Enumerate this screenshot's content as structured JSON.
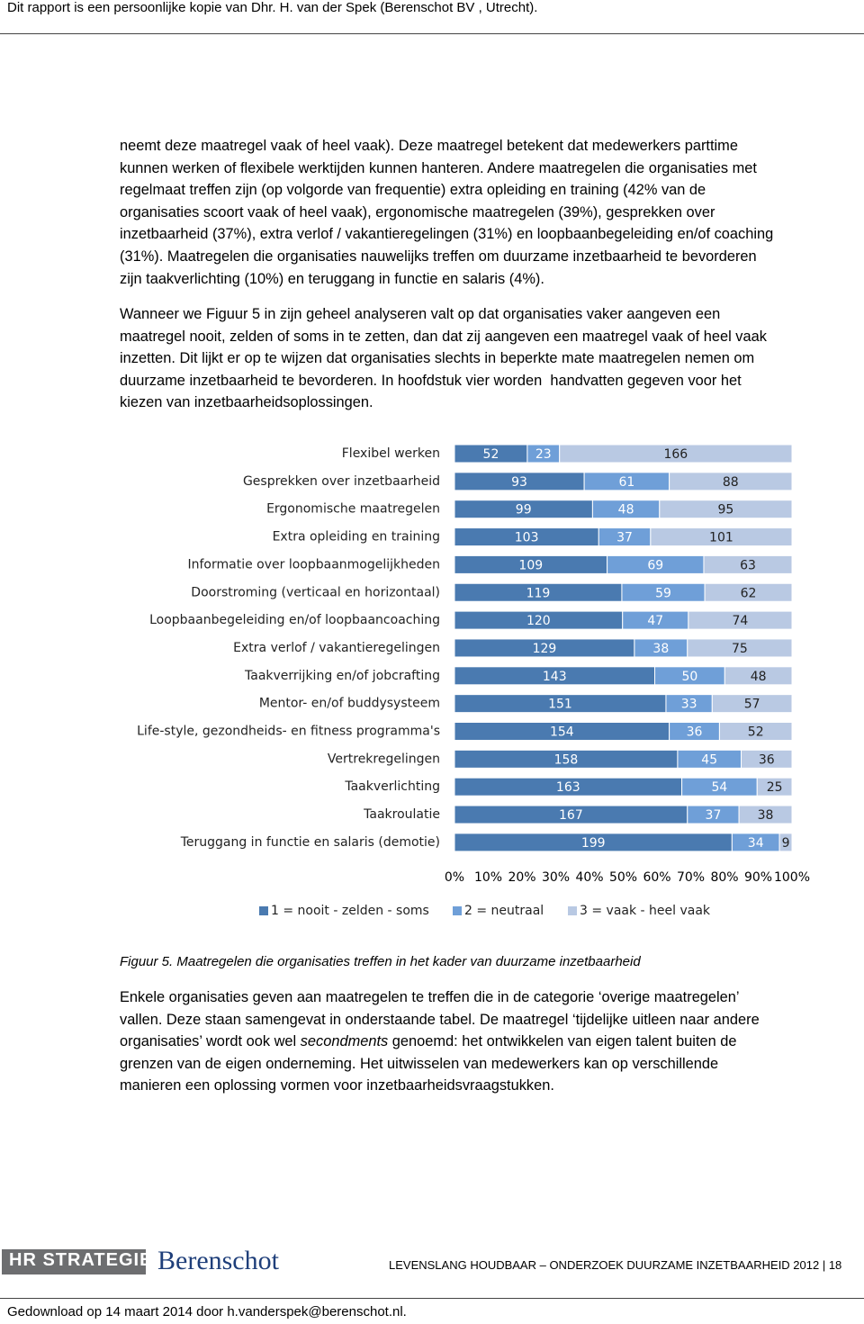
{
  "header": {
    "text": "Dit rapport is een persoonlijke kopie van Dhr. H. van der Spek (Berenschot BV , Utrecht)."
  },
  "paragraphs": [
    {
      "lines": [
        "neemt deze maatregel vaak of heel vaak). Deze maatregel betekent dat medewerkers parttime",
        "kunnen werken of flexibele werktijden kunnen hanteren. Andere maatregelen die organisaties met",
        "regelmaat treffen zijn (op volgorde van frequentie) extra opleiding en training (42% van de",
        "organisaties scoort vaak of heel vaak), ergonomische maatregelen (39%), gesprekken over",
        "inzetbaarheid (37%), extra verlof / vakantieregelingen (31%) en loopbaanbegeleiding en/of coaching",
        "(31%). Maatregelen die organisaties nauwelijks treffen om duurzame inzetbaarheid te bevorderen",
        "zijn taakverlichting (10%) en teruggang in functie en salaris (4%)."
      ]
    },
    {
      "lines": [
        "Wanneer we Figuur 5 in zijn geheel analyseren valt op dat organisaties vaker aangeven een",
        "maatregel nooit, zelden of soms in te zetten, dan dat zij aangeven een maatregel vaak of heel vaak",
        "inzetten. Dit lijkt er op te wijzen dat organisaties slechts in beperkte mate maatregelen nemen om",
        "duurzame inzetbaarheid te bevorderen. In hoofdstuk vier worden  handvatten gegeven voor het",
        "kiezen van inzetbaarheidsoplossingen."
      ]
    },
    {
      "lines": [
        "Enkele organisaties geven aan maatregelen te treffen die in de categorie ‘overige maatregelen’",
        "vallen. Deze staan samengevat in onderstaande tabel. De maatregel ‘tijdelijke uitleen naar andere",
        [
          "organisaties’ wordt ook wel ",
          "secondments",
          " genoemd: het ontwikkelen van eigen talent buiten de"
        ],
        "grenzen van de eigen onderneming. Het uitwisselen van medewerkers kan op verschillende",
        "manieren een oplossing vormen voor inzetbaarheidsvraagstukken."
      ]
    }
  ],
  "caption": "Figuur 5. Maatregelen die organisaties treffen in het kader van duurzame inzetbaarheid",
  "chart_data": {
    "type": "bar",
    "orientation": "horizontal",
    "stacked": "percent",
    "categories": [
      "Flexibel werken",
      "Gesprekken over inzetbaarheid",
      "Ergonomische maatregelen",
      "Extra opleiding en training",
      "Informatie over loopbaanmogelijkheden",
      "Doorstroming (verticaal en horizontaal)",
      "Loopbaanbegeleiding en/of loopbaancoaching",
      "Extra verlof / vakantieregelingen",
      "Taakverrijking en/of jobcrafting",
      "Mentor- en/of buddysysteem",
      "Life-style, gezondheids- en fitness programma's",
      "Vertrekregelingen",
      "Taakverlichting",
      "Taakroulatie",
      "Teruggang in functie en salaris (demotie)"
    ],
    "series": [
      {
        "name": "1 = nooit - zelden - soms",
        "color": "#4a7ab0",
        "values": [
          52,
          93,
          99,
          103,
          109,
          119,
          120,
          129,
          143,
          151,
          154,
          158,
          163,
          167,
          199
        ]
      },
      {
        "name": "2 = neutraal",
        "color": "#6f9fd8",
        "values": [
          23,
          61,
          48,
          37,
          69,
          59,
          47,
          38,
          50,
          33,
          36,
          45,
          54,
          37,
          34
        ]
      },
      {
        "name": "3 = vaak -  heel vaak",
        "color": "#b9c9e3",
        "values": [
          166,
          88,
          95,
          101,
          63,
          62,
          74,
          75,
          48,
          57,
          52,
          36,
          25,
          38,
          9
        ]
      }
    ],
    "xlim": [
      0,
      100
    ],
    "xticks": [
      {
        "value": 0,
        "label": "0%"
      },
      {
        "value": 10,
        "label": "10%"
      },
      {
        "value": 20,
        "label": "20%"
      },
      {
        "value": 30,
        "label": "30%"
      },
      {
        "value": 40,
        "label": "40%"
      },
      {
        "value": 50,
        "label": "50%"
      },
      {
        "value": 60,
        "label": "60%"
      },
      {
        "value": 70,
        "label": "70%"
      },
      {
        "value": 80,
        "label": "80%"
      },
      {
        "value": 90,
        "label": "90%"
      },
      {
        "value": 100,
        "label": "100%"
      }
    ],
    "legend": "bottom"
  },
  "footer": {
    "logo_left": "HR STRATEGIE",
    "logo_right": "Berenschot",
    "running_title": "LEVENSLANG HOUDBAAR – ONDERZOEK DUURZAME INZETBAARHEID 2012 | 18",
    "download": "Gedownload op 14 maart 2014 door h.vanderspek@berenschot.nl."
  }
}
